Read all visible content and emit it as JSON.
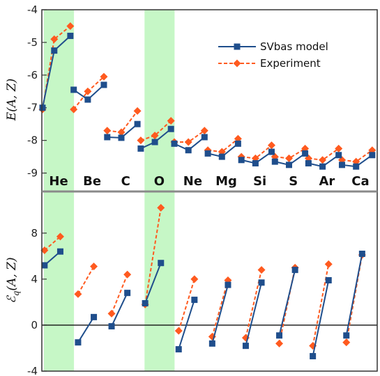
{
  "colors": {
    "model": "#1f4e8c",
    "experiment": "#ff5a1f",
    "highlight": "#c6f7c6",
    "axis": "#333333",
    "divider": "#8a8a8a"
  },
  "chart_data": [
    {
      "type": "line",
      "panel": "top",
      "ylabel_main": "E",
      "ylabel_args": "(A, Z)",
      "ylim": [
        -9.5,
        -4
      ],
      "yticks": [
        "-9",
        "-8",
        "-7",
        "-6",
        "-5",
        "-4"
      ],
      "ytick_values": [
        -9,
        -8,
        -7,
        -6,
        -5,
        -4
      ],
      "grid": false,
      "legend_placement": "top-right",
      "categories": [
        "He",
        "Be",
        "C",
        "O",
        "Ne",
        "Mg",
        "Si",
        "S",
        "Ar",
        "Ca"
      ],
      "highlighted": [
        "He",
        "O"
      ],
      "series": [
        {
          "name": "SVbas model",
          "style": "solid-square",
          "values": [
            [
              -7.0,
              -5.25,
              -4.8
            ],
            [
              -6.45,
              -6.75,
              -6.3
            ],
            [
              -7.9,
              -7.92,
              -7.5
            ],
            [
              -8.25,
              -8.05,
              -7.65
            ],
            [
              -8.1,
              -8.3,
              -7.9
            ],
            [
              -8.4,
              -8.5,
              -8.1
            ],
            [
              -8.6,
              -8.7,
              -8.35
            ],
            [
              -8.65,
              -8.75,
              -8.4
            ],
            [
              -8.7,
              -8.8,
              -8.45
            ],
            [
              -8.75,
              -8.8,
              -8.45
            ]
          ]
        },
        {
          "name": "Experiment",
          "style": "dashed-diamond",
          "values": [
            [
              -7.05,
              -4.9,
              -4.5
            ],
            [
              -7.05,
              -6.5,
              -6.05
            ],
            [
              -7.7,
              -7.75,
              -7.1
            ],
            [
              -8.0,
              -7.85,
              -7.4
            ],
            [
              -8.05,
              -8.05,
              -7.7
            ],
            [
              -8.3,
              -8.35,
              -7.95
            ],
            [
              -8.5,
              -8.55,
              -8.15
            ],
            [
              -8.5,
              -8.55,
              -8.25
            ],
            [
              -8.55,
              -8.6,
              -8.25
            ],
            [
              -8.6,
              -8.65,
              -8.3
            ]
          ]
        }
      ]
    },
    {
      "type": "line",
      "panel": "bottom",
      "ylabel_main": "ℰ",
      "ylabel_sub": "q",
      "ylabel_args": "(A, Z)",
      "ylim": [
        -4,
        11.8
      ],
      "yticks": [
        "-4",
        "0",
        "4",
        "8"
      ],
      "ytick_values": [
        -4,
        0,
        4,
        8
      ],
      "zero_line": true,
      "grid": false,
      "categories": [
        "He",
        "Be",
        "C",
        "O",
        "Ne",
        "Mg",
        "Si",
        "S",
        "Ar",
        "Ca"
      ],
      "highlighted": [
        "He",
        "O"
      ],
      "series": [
        {
          "name": "SVbas model",
          "style": "solid-square",
          "values": [
            [
              5.2,
              6.4
            ],
            [
              -1.5,
              0.7
            ],
            [
              -0.1,
              2.8
            ],
            [
              1.9,
              5.4
            ],
            [
              -2.1,
              2.2
            ],
            [
              -1.6,
              3.5
            ],
            [
              -1.8,
              3.7
            ],
            [
              -0.9,
              4.8
            ],
            [
              -2.7,
              3.9
            ],
            [
              -0.9,
              6.2
            ]
          ]
        },
        {
          "name": "Experiment",
          "style": "dashed-diamond",
          "values": [
            [
              6.5,
              7.7
            ],
            [
              2.7,
              5.1
            ],
            [
              1.0,
              4.4
            ],
            [
              1.8,
              10.2
            ],
            [
              -0.5,
              4.0
            ],
            [
              -1.0,
              3.9
            ],
            [
              -1.1,
              4.8
            ],
            [
              -1.6,
              5.0
            ],
            [
              -1.8,
              5.3
            ],
            [
              -1.5,
              6.1
            ]
          ]
        }
      ]
    }
  ]
}
